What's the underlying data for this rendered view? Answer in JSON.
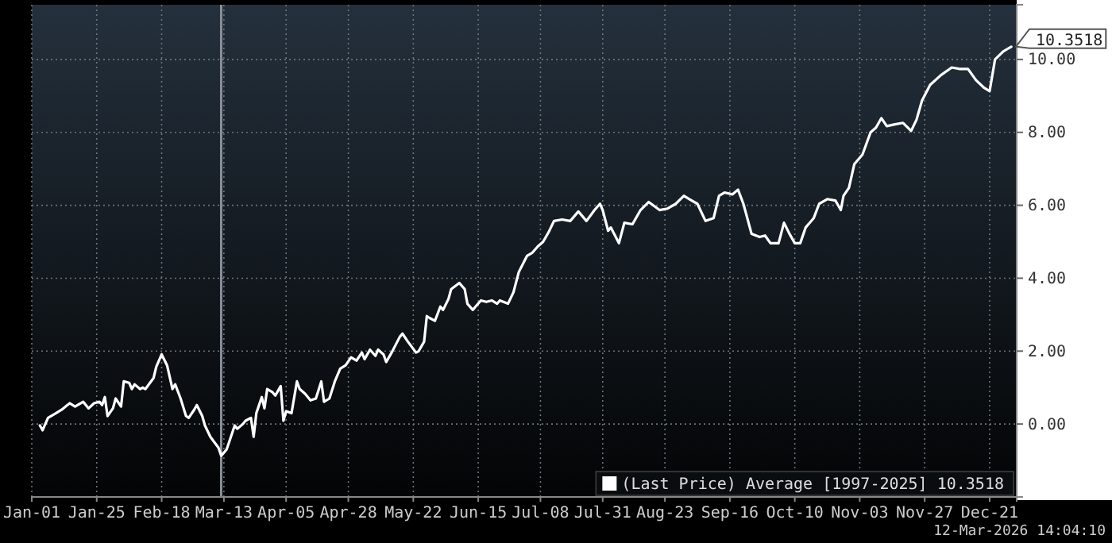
{
  "chart_data": {
    "type": "line",
    "xlim": [
      "--01-01",
      "--12-31"
    ],
    "ylim": [
      -2,
      11.5
    ],
    "xticks": [
      {
        "value": "--01-01",
        "label": "Jan-01"
      },
      {
        "value": "--01-25",
        "label": "Jan-25"
      },
      {
        "value": "--02-18",
        "label": "Feb-18"
      },
      {
        "value": "--03-13",
        "label": "Mar-13"
      },
      {
        "value": "--04-05",
        "label": "Apr-05"
      },
      {
        "value": "--04-28",
        "label": "Apr-28"
      },
      {
        "value": "--05-22",
        "label": "May-22"
      },
      {
        "value": "--06-15",
        "label": "Jun-15"
      },
      {
        "value": "--07-08",
        "label": "Jul-08"
      },
      {
        "value": "--07-31",
        "label": "Jul-31"
      },
      {
        "value": "--08-23",
        "label": "Aug-23"
      },
      {
        "value": "--09-16",
        "label": "Sep-16"
      },
      {
        "value": "--10-10",
        "label": "Oct-10"
      },
      {
        "value": "--11-03",
        "label": "Nov-03"
      },
      {
        "value": "--11-27",
        "label": "Nov-27"
      },
      {
        "value": "--12-21",
        "label": "Dec-21"
      }
    ],
    "yticks": [
      {
        "value": 0,
        "label": "0.00"
      },
      {
        "value": 2,
        "label": "2.00"
      },
      {
        "value": 4,
        "label": "4.00"
      },
      {
        "value": 6,
        "label": "6.00"
      },
      {
        "value": 8,
        "label": "8.00"
      },
      {
        "value": 10,
        "label": "10.00"
      }
    ],
    "grid": true,
    "legend": "bottom right",
    "marker": "none",
    "line_style": "solid",
    "ref_lines": [
      {
        "axis": "x",
        "value": "--03-12",
        "color": "#8a9099"
      }
    ],
    "annotations": [
      {
        "text": "10.3518",
        "x": "--12-29",
        "y": 10.3518
      },
      "12-Mar-2026 14:04:10"
    ],
    "x": [
      "--01-04",
      "--01-05",
      "--01-07",
      "--01-10",
      "--01-12",
      "--01-15",
      "--01-17",
      "--01-20",
      "--01-22",
      "--01-24",
      "--01-26",
      "--01-27",
      "--01-28",
      "--01-29",
      "--01-31",
      "--02-01",
      "--02-03",
      "--02-04",
      "--02-06",
      "--02-07",
      "--02-08",
      "--02-10",
      "--02-11",
      "--02-12",
      "--02-15",
      "--02-16",
      "--02-18",
      "--02-20",
      "--02-22",
      "--02-23",
      "--02-25",
      "--02-27",
      "--02-28",
      "--03-02",
      "--03-03",
      "--03-05",
      "--03-06",
      "--03-08",
      "--03-11",
      "--03-12",
      "--03-14",
      "--03-15",
      "--03-17",
      "--03-18",
      "--03-20",
      "--03-21",
      "--03-23",
      "--03-24",
      "--03-25",
      "--03-27",
      "--03-28",
      "--03-29",
      "--03-31",
      "--04-01",
      "--04-03",
      "--04-04",
      "--04-05",
      "--04-07",
      "--04-09",
      "--04-10",
      "--04-12",
      "--04-14",
      "--04-16",
      "--04-18",
      "--04-19",
      "--04-21",
      "--04-23",
      "--04-25",
      "--04-27",
      "--04-29",
      "--05-01",
      "--05-03",
      "--05-04",
      "--05-06",
      "--05-08",
      "--05-09",
      "--05-11",
      "--05-12",
      "--05-14",
      "--05-17",
      "--05-18",
      "--05-20",
      "--05-23",
      "--05-24",
      "--05-26",
      "--05-27",
      "--05-28",
      "--05-30",
      "--06-01",
      "--06-02",
      "--06-04",
      "--06-05",
      "--06-08",
      "--06-10",
      "--06-11",
      "--06-13",
      "--06-14",
      "--06-16",
      "--06-18",
      "--06-20",
      "--06-22",
      "--06-23",
      "--06-26",
      "--06-28",
      "--06-30",
      "--07-03",
      "--07-05",
      "--07-07",
      "--07-09",
      "--07-11",
      "--07-13",
      "--07-16",
      "--07-19",
      "--07-22",
      "--07-25",
      "--07-28",
      "--07-30",
      "--07-31",
      "--08-02",
      "--08-03",
      "--08-06",
      "--08-08",
      "--08-11",
      "--08-14",
      "--08-17",
      "--08-21",
      "--08-24",
      "--08-27",
      "--08-30",
      "--09-01",
      "--09-04",
      "--09-07",
      "--09-10",
      "--09-12",
      "--09-14",
      "--09-17",
      "--09-19",
      "--09-21",
      "--09-24",
      "--09-27",
      "--09-29",
      "--10-01",
      "--10-04",
      "--10-06",
      "--10-08",
      "--10-10",
      "--10-12",
      "--10-14",
      "--10-17",
      "--10-19",
      "--10-22",
      "--10-25",
      "--10-27",
      "--10-28",
      "--10-30",
      "--11-01",
      "--11-04",
      "--11-07",
      "--11-09",
      "--11-11",
      "--11-13",
      "--11-16",
      "--11-19",
      "--11-22",
      "--11-24",
      "--11-26",
      "--11-29",
      "--12-03",
      "--12-07",
      "--12-10",
      "--12-13",
      "--12-16",
      "--12-19",
      "--12-21",
      "--12-23",
      "--12-26",
      "--12-29"
    ],
    "series": [
      {
        "name": "(Last Price) Average [1997-2025] 10.3518",
        "color": "#ffffff",
        "values": [
          -0.04,
          -0.17,
          0.17,
          0.3,
          0.39,
          0.57,
          0.48,
          0.61,
          0.43,
          0.57,
          0.61,
          0.52,
          0.74,
          0.22,
          0.43,
          0.7,
          0.48,
          1.17,
          1.13,
          0.96,
          1.09,
          0.96,
          1.0,
          0.96,
          1.26,
          1.57,
          1.91,
          1.61,
          0.96,
          1.09,
          0.7,
          0.22,
          0.17,
          0.39,
          0.52,
          0.22,
          -0.04,
          -0.35,
          -0.65,
          -0.87,
          -0.7,
          -0.48,
          -0.04,
          -0.13,
          0.0,
          0.09,
          0.17,
          -0.35,
          0.3,
          0.74,
          0.43,
          0.96,
          0.87,
          0.78,
          1.04,
          0.09,
          0.35,
          0.3,
          1.17,
          0.96,
          0.83,
          0.65,
          0.7,
          1.17,
          0.61,
          0.7,
          1.17,
          1.52,
          1.61,
          1.83,
          1.74,
          1.96,
          1.78,
          2.04,
          1.87,
          2.04,
          1.91,
          1.7,
          1.96,
          2.39,
          2.48,
          2.26,
          1.96,
          2.0,
          2.26,
          2.96,
          2.91,
          2.83,
          3.22,
          3.13,
          3.43,
          3.7,
          3.87,
          3.7,
          3.3,
          3.13,
          3.22,
          3.39,
          3.35,
          3.39,
          3.3,
          3.39,
          3.3,
          3.61,
          4.17,
          4.61,
          4.7,
          4.87,
          5.0,
          5.26,
          5.57,
          5.61,
          5.57,
          5.83,
          5.57,
          5.87,
          6.04,
          5.87,
          5.3,
          5.39,
          4.96,
          5.52,
          5.48,
          5.87,
          6.09,
          5.87,
          5.91,
          6.04,
          6.26,
          6.17,
          6.04,
          5.57,
          5.65,
          6.26,
          6.35,
          6.3,
          6.43,
          6.04,
          5.22,
          5.13,
          5.17,
          4.96,
          4.96,
          5.52,
          5.22,
          4.96,
          4.96,
          5.39,
          5.65,
          6.04,
          6.17,
          6.13,
          5.87,
          6.26,
          6.48,
          7.13,
          7.39,
          8.0,
          8.13,
          8.39,
          8.17,
          8.22,
          8.26,
          8.04,
          8.35,
          8.87,
          9.3,
          9.57,
          9.78,
          9.74,
          9.74,
          9.43,
          9.22,
          9.13,
          10.0,
          10.22,
          10.35
        ]
      }
    ]
  }
}
